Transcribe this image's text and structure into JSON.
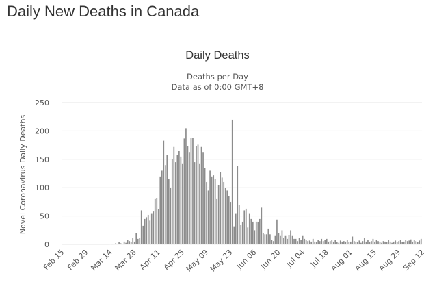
{
  "page": {
    "heading": "Daily New Deaths in Canada"
  },
  "chart_data": {
    "type": "bar",
    "title": "Daily Deaths",
    "subtitle_line1": "Deaths per Day",
    "subtitle_line2": "Data as of 0:00 GMT+8",
    "ylabel": "Novel Coronavirus Daily Deaths",
    "xlabel": "",
    "ylim": [
      0,
      250
    ],
    "yticks": [
      0,
      50,
      100,
      150,
      200,
      250
    ],
    "grid": true,
    "legend": "none",
    "bar_color": "#8c8c8c",
    "x_tick_labels": [
      "Feb 15",
      "Feb 29",
      "Mar 14",
      "Mar 28",
      "Apr 11",
      "Apr 25",
      "May 09",
      "May 23",
      "Jun 06",
      "Jun 20",
      "Jul 04",
      "Jul 18",
      "Aug 01",
      "Aug 15",
      "Aug 29",
      "Sep 12"
    ],
    "x_tick_interval_days": 14,
    "first_date": "Feb 15",
    "values": [
      0,
      0,
      0,
      0,
      0,
      0,
      0,
      0,
      0,
      0,
      0,
      0,
      0,
      0,
      0,
      0,
      0,
      0,
      0,
      0,
      0,
      0,
      0,
      0,
      0,
      0,
      0,
      0,
      1,
      0,
      1,
      2,
      1,
      4,
      2,
      1,
      5,
      3,
      8,
      6,
      4,
      12,
      5,
      20,
      10,
      12,
      60,
      33,
      45,
      48,
      52,
      42,
      55,
      58,
      80,
      82,
      62,
      120,
      130,
      183,
      140,
      158,
      115,
      100,
      150,
      172,
      145,
      158,
      165,
      155,
      143,
      187,
      205,
      173,
      163,
      188,
      188,
      145,
      173,
      176,
      143,
      172,
      163,
      135,
      110,
      95,
      130,
      120,
      122,
      115,
      80,
      105,
      128,
      118,
      110,
      100,
      95,
      85,
      75,
      220,
      32,
      55,
      138,
      70,
      35,
      40,
      60,
      63,
      30,
      55,
      45,
      40,
      25,
      40,
      40,
      45,
      65,
      20,
      18,
      18,
      28,
      18,
      8,
      6,
      15,
      44,
      20,
      15,
      25,
      12,
      15,
      10,
      16,
      25,
      15,
      10,
      10,
      6,
      12,
      8,
      15,
      10,
      8,
      6,
      7,
      5,
      10,
      5,
      4,
      8,
      6,
      10,
      6,
      8,
      10,
      5,
      6,
      8,
      5,
      8,
      4,
      3,
      7,
      5,
      6,
      5,
      8,
      4,
      5,
      14,
      6,
      5,
      4,
      7,
      3,
      6,
      12,
      5,
      8,
      4,
      6,
      10,
      5,
      8,
      6,
      4,
      3,
      6,
      5,
      4,
      8,
      5,
      3,
      5,
      7,
      4,
      6,
      8,
      4,
      5,
      8,
      6,
      7,
      9,
      5,
      8,
      6,
      4,
      7,
      10
    ]
  }
}
